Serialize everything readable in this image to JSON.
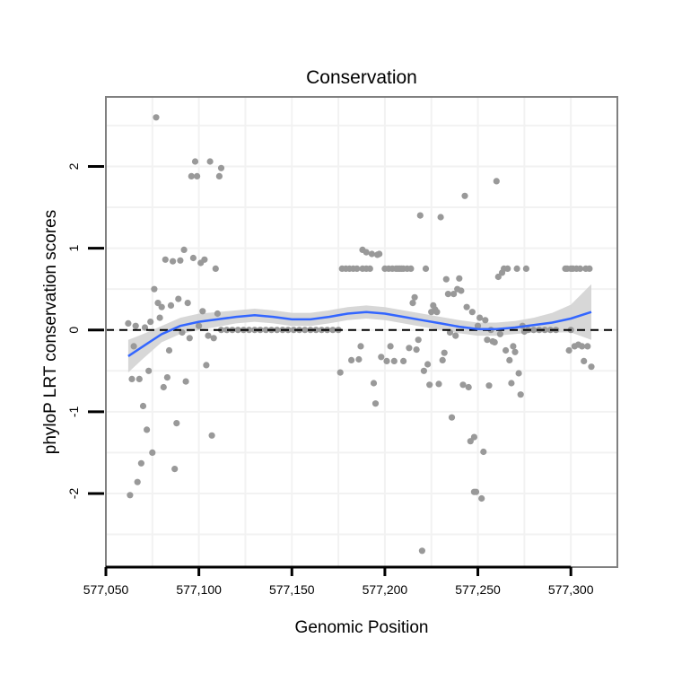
{
  "chart_data": {
    "type": "scatter",
    "title": "Conservation",
    "xlabel": "Genomic Position",
    "ylabel": "phyloP LRT conservation scores",
    "xlim": [
      577050,
      577325
    ],
    "ylim": [
      -2.9,
      2.85
    ],
    "x_ticks": [
      577050,
      577100,
      577150,
      577200,
      577250,
      577300
    ],
    "x_tick_labels": [
      "577,050",
      "577,100",
      "577,150",
      "577,200",
      "577,250",
      "577,300"
    ],
    "y_ticks": [
      -2,
      -1,
      0,
      1,
      2
    ],
    "y_tick_labels": [
      "-2",
      "-1",
      "0",
      "1",
      "2"
    ],
    "grid": true,
    "reference_line_y": 0,
    "colors": {
      "points": "#999999",
      "smooth_line": "#3366ff",
      "confidence_band": "#d3d3d3",
      "reference_line": "#000000",
      "panel_border": "#808080",
      "grid": "#f2f2f2"
    },
    "points": [
      [
        577062,
        0.08
      ],
      [
        577063,
        -2.02
      ],
      [
        577064,
        -0.6
      ],
      [
        577065,
        -0.2
      ],
      [
        577066,
        0.05
      ],
      [
        577067,
        -1.86
      ],
      [
        577068,
        -0.6
      ],
      [
        577069,
        -1.63
      ],
      [
        577070,
        -0.93
      ],
      [
        577071,
        0.03
      ],
      [
        577072,
        -1.22
      ],
      [
        577073,
        -0.5
      ],
      [
        577074,
        0.1
      ],
      [
        577075,
        -1.5
      ],
      [
        577076,
        0.5
      ],
      [
        577077,
        2.6
      ],
      [
        577078,
        0.33
      ],
      [
        577079,
        0.15
      ],
      [
        577080,
        0.28
      ],
      [
        577081,
        -0.7
      ],
      [
        577082,
        0.86
      ],
      [
        577083,
        -0.58
      ],
      [
        577084,
        -0.25
      ],
      [
        577085,
        0.3
      ],
      [
        577086,
        0.84
      ],
      [
        577087,
        -1.7
      ],
      [
        577088,
        -1.14
      ],
      [
        577089,
        0.38
      ],
      [
        577090,
        0.85
      ],
      [
        577091,
        -0.03
      ],
      [
        577092,
        0.98
      ],
      [
        577093,
        -0.63
      ],
      [
        577094,
        0.33
      ],
      [
        577095,
        -0.1
      ],
      [
        577096,
        1.88
      ],
      [
        577097,
        0.88
      ],
      [
        577098,
        2.06
      ],
      [
        577099,
        1.88
      ],
      [
        577100,
        0.05
      ],
      [
        577101,
        0.82
      ],
      [
        577102,
        0.23
      ],
      [
        577103,
        0.86
      ],
      [
        577104,
        -0.43
      ],
      [
        577105,
        -0.07
      ],
      [
        577106,
        2.06
      ],
      [
        577107,
        -1.29
      ],
      [
        577108,
        -0.1
      ],
      [
        577109,
        0.75
      ],
      [
        577110,
        0.2
      ],
      [
        577111,
        1.88
      ],
      [
        577112,
        1.98
      ],
      [
        577112,
        0.0
      ],
      [
        577115,
        0.0
      ],
      [
        577118,
        0.0
      ],
      [
        577121,
        0.0
      ],
      [
        577124,
        0.0
      ],
      [
        577127,
        0.0
      ],
      [
        577130,
        0.0
      ],
      [
        577133,
        0.0
      ],
      [
        577136,
        0.0
      ],
      [
        577139,
        0.0
      ],
      [
        577142,
        0.0
      ],
      [
        577145,
        0.0
      ],
      [
        577148,
        0.0
      ],
      [
        577151,
        0.0
      ],
      [
        577154,
        0.0
      ],
      [
        577157,
        0.0
      ],
      [
        577160,
        0.0
      ],
      [
        577163,
        0.0
      ],
      [
        577166,
        0.0
      ],
      [
        577169,
        0.0
      ],
      [
        577172,
        0.0
      ],
      [
        577175,
        0.0
      ],
      [
        577176,
        -0.52
      ],
      [
        577177,
        0.75
      ],
      [
        577179,
        0.75
      ],
      [
        577181,
        0.75
      ],
      [
        577182,
        -0.37
      ],
      [
        577183,
        0.75
      ],
      [
        577185,
        0.75
      ],
      [
        577186,
        -0.36
      ],
      [
        577187,
        -0.2
      ],
      [
        577188,
        0.75
      ],
      [
        577188,
        0.98
      ],
      [
        577190,
        0.75
      ],
      [
        577190,
        0.95
      ],
      [
        577192,
        0.75
      ],
      [
        577193,
        0.93
      ],
      [
        577194,
        -0.65
      ],
      [
        577195,
        -0.9
      ],
      [
        577196,
        0.92
      ],
      [
        577197,
        0.93
      ],
      [
        577198,
        -0.33
      ],
      [
        577200,
        0.75
      ],
      [
        577201,
        -0.38
      ],
      [
        577202,
        0.75
      ],
      [
        577203,
        -0.2
      ],
      [
        577204,
        0.75
      ],
      [
        577205,
        -0.38
      ],
      [
        577206,
        0.75
      ],
      [
        577207,
        0.75
      ],
      [
        577208,
        0.75
      ],
      [
        577209,
        0.75
      ],
      [
        577210,
        0.75
      ],
      [
        577210,
        -0.38
      ],
      [
        577212,
        0.75
      ],
      [
        577213,
        -0.22
      ],
      [
        577214,
        0.75
      ],
      [
        577215,
        0.33
      ],
      [
        577216,
        0.4
      ],
      [
        577217,
        -0.24
      ],
      [
        577218,
        -0.12
      ],
      [
        577219,
        1.4
      ],
      [
        577220,
        -2.7
      ],
      [
        577221,
        -0.5
      ],
      [
        577222,
        0.75
      ],
      [
        577223,
        -0.42
      ],
      [
        577224,
        -0.67
      ],
      [
        577225,
        0.22
      ],
      [
        577226,
        0.3
      ],
      [
        577227,
        0.25
      ],
      [
        577228,
        0.22
      ],
      [
        577229,
        -0.66
      ],
      [
        577230,
        1.38
      ],
      [
        577231,
        -0.37
      ],
      [
        577232,
        -0.28
      ],
      [
        577233,
        0.62
      ],
      [
        577234,
        0.44
      ],
      [
        577235,
        -0.03
      ],
      [
        577236,
        -1.07
      ],
      [
        577237,
        0.44
      ],
      [
        577238,
        -0.07
      ],
      [
        577239,
        0.5
      ],
      [
        577240,
        0.63
      ],
      [
        577241,
        0.48
      ],
      [
        577242,
        -0.67
      ],
      [
        577243,
        1.64
      ],
      [
        577244,
        0.28
      ],
      [
        577245,
        -0.7
      ],
      [
        577246,
        -1.36
      ],
      [
        577247,
        0.22
      ],
      [
        577248,
        -1.31
      ],
      [
        577248,
        -1.98
      ],
      [
        577249,
        -1.98
      ],
      [
        577250,
        0.05
      ],
      [
        577251,
        0.15
      ],
      [
        577252,
        -2.06
      ],
      [
        577253,
        -1.49
      ],
      [
        577254,
        0.12
      ],
      [
        577255,
        -0.12
      ],
      [
        577256,
        -0.68
      ],
      [
        577257,
        0.0
      ],
      [
        577258,
        -0.14
      ],
      [
        577259,
        -0.15
      ],
      [
        577260,
        1.82
      ],
      [
        577261,
        0.65
      ],
      [
        577262,
        -0.05
      ],
      [
        577263,
        0.7
      ],
      [
        577264,
        0.75
      ],
      [
        577265,
        -0.25
      ],
      [
        577266,
        0.75
      ],
      [
        577267,
        -0.37
      ],
      [
        577268,
        -0.65
      ],
      [
        577269,
        -0.2
      ],
      [
        577270,
        -0.27
      ],
      [
        577271,
        0.75
      ],
      [
        577272,
        -0.53
      ],
      [
        577273,
        -0.79
      ],
      [
        577274,
        0.05
      ],
      [
        577275,
        -0.02
      ],
      [
        577276,
        0.75
      ],
      [
        577277,
        0.0
      ],
      [
        577280,
        0.0
      ],
      [
        577283,
        0.0
      ],
      [
        577286,
        0.0
      ],
      [
        577289,
        0.0
      ],
      [
        577292,
        0.0
      ],
      [
        577297,
        0.75
      ],
      [
        577298,
        0.75
      ],
      [
        577299,
        -0.25
      ],
      [
        577300,
        0.75
      ],
      [
        577300,
        0.0
      ],
      [
        577301,
        0.75
      ],
      [
        577302,
        -0.2
      ],
      [
        577303,
        0.75
      ],
      [
        577304,
        -0.18
      ],
      [
        577305,
        0.75
      ],
      [
        577306,
        -0.2
      ],
      [
        577307,
        -0.38
      ],
      [
        577308,
        0.75
      ],
      [
        577309,
        -0.2
      ],
      [
        577310,
        0.75
      ],
      [
        577311,
        -0.45
      ]
    ],
    "smooth": {
      "method": "loess",
      "x": [
        577062,
        577070,
        577080,
        577090,
        577100,
        577110,
        577120,
        577130,
        577140,
        577150,
        577160,
        577170,
        577180,
        577190,
        577200,
        577210,
        577220,
        577230,
        577240,
        577250,
        577260,
        577270,
        577280,
        577290,
        577300,
        577311
      ],
      "y": [
        -0.32,
        -0.2,
        -0.05,
        0.05,
        0.1,
        0.13,
        0.16,
        0.18,
        0.16,
        0.13,
        0.13,
        0.16,
        0.2,
        0.22,
        0.2,
        0.16,
        0.12,
        0.08,
        0.04,
        0.01,
        0.01,
        0.03,
        0.06,
        0.09,
        0.14,
        0.22
      ],
      "lower": [
        -0.52,
        -0.35,
        -0.15,
        -0.05,
        0.0,
        0.04,
        0.08,
        0.1,
        0.08,
        0.05,
        0.05,
        0.08,
        0.12,
        0.14,
        0.12,
        0.08,
        0.04,
        0.0,
        -0.04,
        -0.07,
        -0.07,
        -0.05,
        -0.03,
        -0.03,
        -0.03,
        -0.12
      ],
      "upper": [
        -0.12,
        -0.05,
        0.05,
        0.15,
        0.2,
        0.22,
        0.24,
        0.26,
        0.24,
        0.21,
        0.21,
        0.24,
        0.28,
        0.3,
        0.28,
        0.24,
        0.2,
        0.16,
        0.12,
        0.09,
        0.09,
        0.11,
        0.15,
        0.21,
        0.31,
        0.56
      ]
    }
  }
}
